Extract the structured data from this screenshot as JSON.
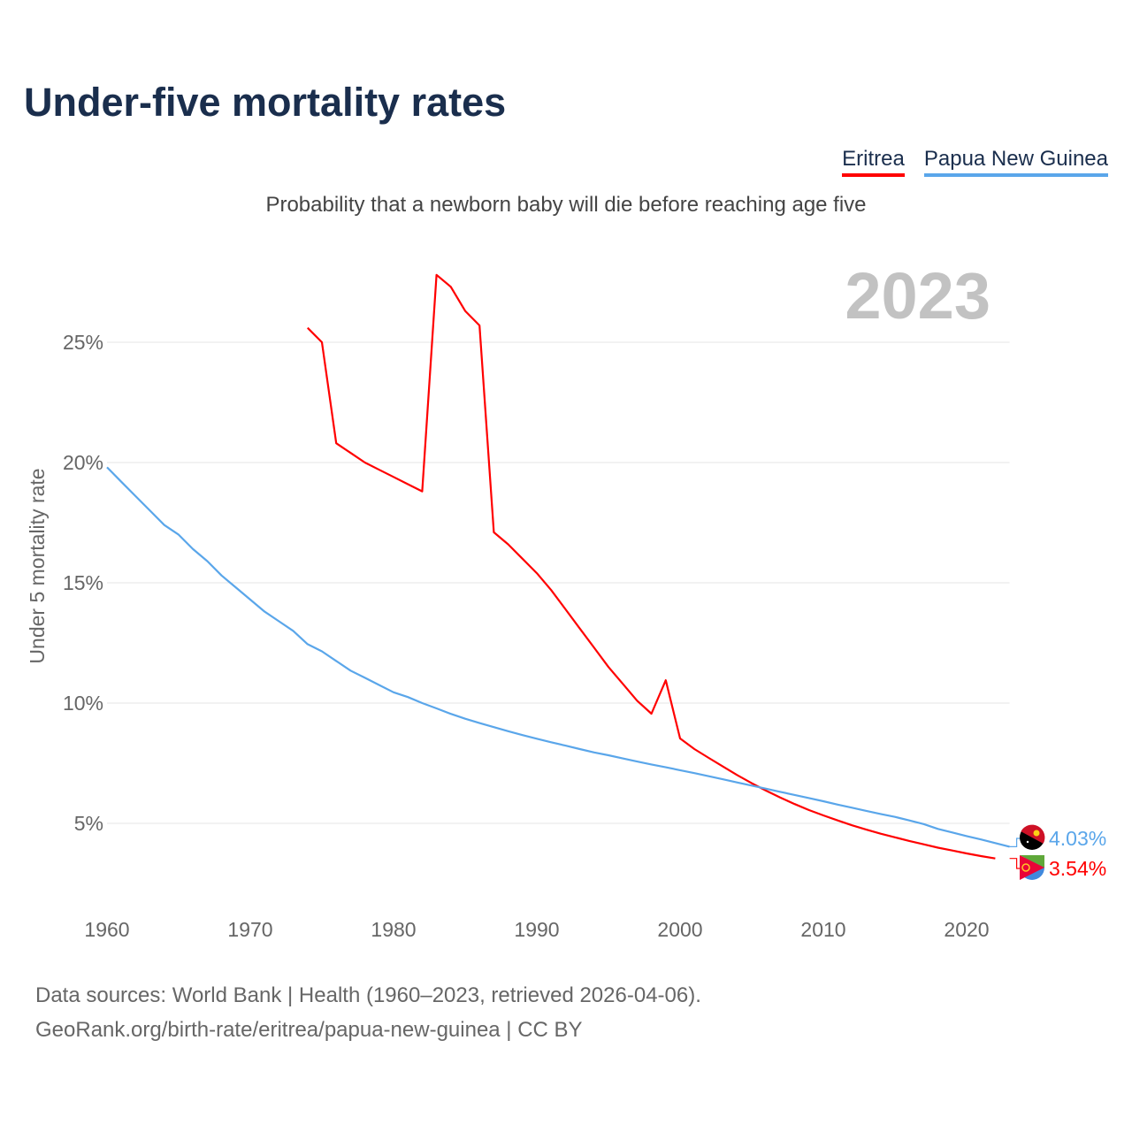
{
  "title": "Under-five mortality rates",
  "subtitle": "Probability that a newborn baby will die before reaching age five",
  "footer": {
    "line1": "Data sources: World Bank | Health (1960–2023, retrieved 2026-04-06).",
    "line2": "GeoRank.org/birth-rate/eritrea/papua-new-guinea | CC BY"
  },
  "chart_data": {
    "type": "line",
    "title": "Under-five mortality rates",
    "ylabel": "Under 5 mortality rate",
    "xlabel": "",
    "year_label": "2023",
    "xlim": [
      1960,
      2023
    ],
    "ylim": [
      0,
      28
    ],
    "xticks": [
      1960,
      1970,
      1980,
      1990,
      2000,
      2010,
      2020
    ],
    "yticks": [
      {
        "v": 5,
        "label": "5%"
      },
      {
        "v": 10,
        "label": "10%"
      },
      {
        "v": 15,
        "label": "15%"
      },
      {
        "v": 20,
        "label": "20%"
      },
      {
        "v": 25,
        "label": "25%"
      }
    ],
    "grid": true,
    "legend_placement": "top-right",
    "series": [
      {
        "name": "Eritrea",
        "color": "#ff0000",
        "end_label": "3.54%",
        "flag": "eritrea-flag",
        "start": 1974,
        "values": [
          25.6,
          25.0,
          20.8,
          20.4,
          20.0,
          19.7,
          19.4,
          19.1,
          18.8,
          27.8,
          27.3,
          26.3,
          25.7,
          17.1,
          16.6,
          16.0,
          15.4,
          14.7,
          13.9,
          13.1,
          12.3,
          11.5,
          10.8,
          10.1,
          9.56,
          10.95,
          8.53,
          8.09,
          7.72,
          7.36,
          7.0,
          6.67,
          6.36,
          6.07,
          5.8,
          5.55,
          5.33,
          5.12,
          4.92,
          4.74,
          4.57,
          4.42,
          4.27,
          4.13,
          3.99,
          3.87,
          3.75,
          3.64,
          3.54
        ]
      },
      {
        "name": "Papua New Guinea",
        "color": "#5aa6ea",
        "end_label": "4.03%",
        "flag": "png-flag",
        "start": 1960,
        "values": [
          19.8,
          19.2,
          18.6,
          18.0,
          17.4,
          17.0,
          16.4,
          15.9,
          15.3,
          14.8,
          14.3,
          13.8,
          13.4,
          13.0,
          12.45,
          12.15,
          11.75,
          11.35,
          11.05,
          10.75,
          10.45,
          10.25,
          10.0,
          9.78,
          9.55,
          9.35,
          9.17,
          9.0,
          8.83,
          8.67,
          8.52,
          8.37,
          8.23,
          8.09,
          7.95,
          7.83,
          7.7,
          7.57,
          7.45,
          7.33,
          7.21,
          7.09,
          6.96,
          6.83,
          6.7,
          6.57,
          6.44,
          6.31,
          6.18,
          6.05,
          5.92,
          5.78,
          5.65,
          5.52,
          5.39,
          5.27,
          5.12,
          4.97,
          4.77,
          4.62,
          4.47,
          4.33,
          4.18,
          4.03
        ]
      }
    ]
  }
}
